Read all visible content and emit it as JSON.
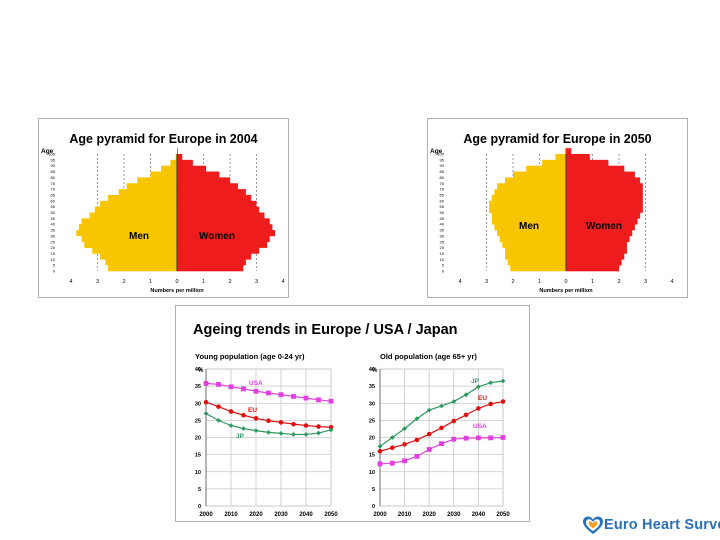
{
  "pyramid_2004": {
    "title": "Age pyramid for Europe in 2004",
    "age_label": "Age",
    "men_label": "Men",
    "women_label": "Women",
    "xlabel": "Numbers per million"
  },
  "pyramid_2050": {
    "title": "Age pyramid for Europe in 2050",
    "age_label": "Age",
    "men_label": "Men",
    "women_label": "Women",
    "xlabel": "Numbers per million"
  },
  "trends": {
    "title": "Ageing trends in Europe / USA / Japan",
    "young_subtitle": "Young population (age 0-24 yr)",
    "old_subtitle": "Old population (age 65+ yr)"
  },
  "logo": {
    "text": "Euro Heart Survey"
  },
  "colors": {
    "men": "#f7c600",
    "women": "#ee1c1c",
    "usa": "#e040e0",
    "eu": "#e01010",
    "jp": "#2e9a5e"
  },
  "chart_data": [
    {
      "type": "bar",
      "orientation": "horizontal-pyramid",
      "title": "Age pyramid for Europe in 2004",
      "ylabel": "Age",
      "xlabel": "Numbers per million",
      "y_ticks": [
        0,
        5,
        10,
        15,
        20,
        25,
        30,
        35,
        40,
        45,
        50,
        55,
        60,
        65,
        70,
        75,
        80,
        85,
        90,
        95,
        100
      ],
      "x_ticks": [
        4,
        3,
        2,
        1,
        0,
        1,
        2,
        3,
        4
      ],
      "xlim": [
        -4,
        4
      ],
      "series": [
        {
          "name": "Men",
          "ages": [
            0,
            5,
            10,
            15,
            20,
            25,
            30,
            35,
            40,
            45,
            50,
            55,
            60,
            65,
            70,
            75,
            80,
            85,
            90,
            95,
            100
          ],
          "values": [
            2.6,
            2.7,
            2.9,
            3.2,
            3.5,
            3.6,
            3.8,
            3.7,
            3.6,
            3.3,
            3.1,
            2.9,
            2.6,
            2.2,
            1.9,
            1.5,
            1.0,
            0.6,
            0.25,
            0.05,
            0
          ]
        },
        {
          "name": "Women",
          "ages": [
            0,
            5,
            10,
            15,
            20,
            25,
            30,
            35,
            40,
            45,
            50,
            55,
            60,
            65,
            70,
            75,
            80,
            85,
            90,
            95,
            100
          ],
          "values": [
            2.5,
            2.6,
            2.8,
            3.1,
            3.4,
            3.5,
            3.7,
            3.6,
            3.5,
            3.3,
            3.1,
            3.0,
            2.8,
            2.6,
            2.3,
            2.0,
            1.6,
            1.1,
            0.6,
            0.2,
            0.03
          ]
        }
      ]
    },
    {
      "type": "bar",
      "orientation": "horizontal-pyramid",
      "title": "Age pyramid for Europe in 2050",
      "ylabel": "Age",
      "xlabel": "Numbers per million",
      "y_ticks": [
        0,
        5,
        10,
        15,
        20,
        25,
        30,
        35,
        40,
        45,
        50,
        55,
        60,
        65,
        70,
        75,
        80,
        85,
        90,
        95,
        100
      ],
      "x_ticks": [
        4,
        3,
        2,
        1,
        0,
        1,
        2,
        3,
        4
      ],
      "xlim": [
        -4,
        4
      ],
      "series": [
        {
          "name": "Men",
          "ages": [
            0,
            5,
            10,
            15,
            20,
            25,
            30,
            35,
            40,
            45,
            50,
            55,
            60,
            65,
            70,
            75,
            80,
            85,
            90,
            95,
            100
          ],
          "values": [
            2.1,
            2.2,
            2.3,
            2.3,
            2.4,
            2.5,
            2.6,
            2.7,
            2.8,
            2.8,
            2.9,
            2.9,
            2.8,
            2.7,
            2.6,
            2.3,
            2.0,
            1.5,
            0.9,
            0.4,
            0.05
          ]
        },
        {
          "name": "Women",
          "ages": [
            0,
            5,
            10,
            15,
            20,
            25,
            30,
            35,
            40,
            45,
            50,
            55,
            60,
            65,
            70,
            75,
            80,
            85,
            90,
            95,
            100
          ],
          "values": [
            2.0,
            2.1,
            2.2,
            2.3,
            2.3,
            2.4,
            2.5,
            2.6,
            2.7,
            2.8,
            2.9,
            2.9,
            2.9,
            2.9,
            2.9,
            2.8,
            2.6,
            2.2,
            1.6,
            0.9,
            0.2
          ]
        }
      ]
    },
    {
      "type": "line",
      "title": "Young population (age 0-24 yr)",
      "ylabel": "%",
      "ylim": [
        0,
        40
      ],
      "y_ticks": [
        0,
        5,
        10,
        15,
        20,
        25,
        30,
        35,
        40
      ],
      "x": [
        2000,
        2005,
        2010,
        2015,
        2020,
        2025,
        2030,
        2035,
        2040,
        2045,
        2050
      ],
      "x_ticks": [
        2000,
        2010,
        2020,
        2030,
        2040,
        2050
      ],
      "series": [
        {
          "name": "USA",
          "color": "#e040e0",
          "marker": "square",
          "values": [
            35.8,
            35.5,
            34.8,
            34.2,
            33.5,
            33.0,
            32.5,
            32.0,
            31.5,
            31.0,
            30.6
          ]
        },
        {
          "name": "EU",
          "color": "#e01010",
          "marker": "circle",
          "values": [
            30.3,
            29.0,
            27.6,
            26.5,
            25.6,
            24.9,
            24.4,
            23.9,
            23.5,
            23.2,
            23.0
          ]
        },
        {
          "name": "JP",
          "color": "#2e9a5e",
          "marker": "diamond",
          "values": [
            27.0,
            25.0,
            23.5,
            22.6,
            22.0,
            21.5,
            21.2,
            20.9,
            20.9,
            21.3,
            22.2
          ]
        }
      ]
    },
    {
      "type": "line",
      "title": "Old population (age 65+ yr)",
      "ylabel": "%",
      "ylim": [
        0,
        40
      ],
      "y_ticks": [
        0,
        5,
        10,
        15,
        20,
        25,
        30,
        35,
        40
      ],
      "x": [
        2000,
        2005,
        2010,
        2015,
        2020,
        2025,
        2030,
        2035,
        2040,
        2045,
        2050
      ],
      "x_ticks": [
        2000,
        2010,
        2020,
        2030,
        2040,
        2050
      ],
      "series": [
        {
          "name": "JP",
          "color": "#2e9a5e",
          "marker": "diamond",
          "values": [
            17.4,
            20.0,
            22.6,
            25.5,
            28.0,
            29.2,
            30.5,
            32.5,
            34.8,
            36.0,
            36.5
          ]
        },
        {
          "name": "EU",
          "color": "#e01010",
          "marker": "circle",
          "values": [
            16.0,
            17.0,
            18.0,
            19.3,
            21.0,
            22.8,
            24.8,
            26.6,
            28.5,
            29.8,
            30.5
          ]
        },
        {
          "name": "USA",
          "color": "#e040e0",
          "marker": "square",
          "values": [
            12.3,
            12.5,
            13.2,
            14.5,
            16.5,
            18.2,
            19.5,
            19.8,
            19.9,
            19.9,
            20.0
          ]
        }
      ]
    }
  ]
}
